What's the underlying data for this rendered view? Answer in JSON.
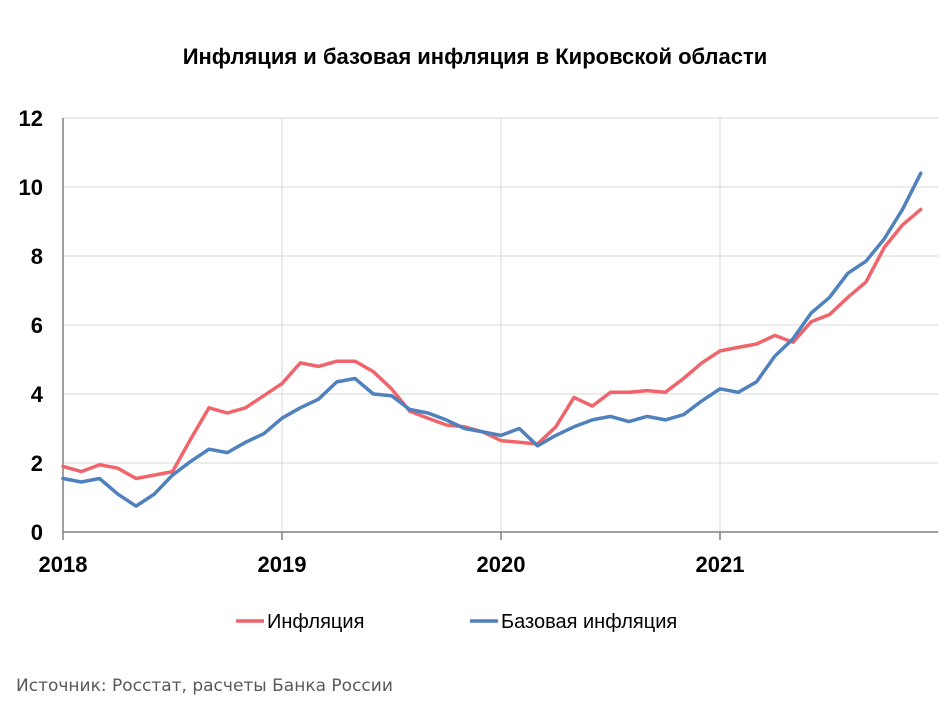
{
  "chart_data": {
    "type": "line",
    "title": "Инфляция и базовая инфляция в Кировской области",
    "xlabel": "",
    "ylabel": "",
    "ylim": [
      0,
      12
    ],
    "yticks": [
      "0",
      "2",
      "4",
      "6",
      "8",
      "10",
      "12"
    ],
    "xticks": [
      "2018",
      "2019",
      "2020",
      "2021"
    ],
    "grid": true,
    "legend_position": "bottom",
    "colors": {
      "inflation": "#f0646b",
      "core": "#4f81bd",
      "grid": "#d9d9d9",
      "axis": "#808080"
    },
    "x": [
      "2018-01",
      "2018-02",
      "2018-03",
      "2018-04",
      "2018-05",
      "2018-06",
      "2018-07",
      "2018-08",
      "2018-09",
      "2018-10",
      "2018-11",
      "2018-12",
      "2019-01",
      "2019-02",
      "2019-03",
      "2019-04",
      "2019-05",
      "2019-06",
      "2019-07",
      "2019-08",
      "2019-09",
      "2019-10",
      "2019-11",
      "2019-12",
      "2020-01",
      "2020-02",
      "2020-03",
      "2020-04",
      "2020-05",
      "2020-06",
      "2020-07",
      "2020-08",
      "2020-09",
      "2020-10",
      "2020-11",
      "2020-12",
      "2021-01",
      "2021-02",
      "2021-03",
      "2021-04",
      "2021-05",
      "2021-06",
      "2021-07",
      "2021-08",
      "2021-09",
      "2021-10",
      "2021-11",
      "2021-12"
    ],
    "series": [
      {
        "name": "Инфляция",
        "values": [
          1.9,
          1.75,
          1.95,
          1.85,
          1.55,
          1.65,
          1.75,
          2.7,
          3.6,
          3.45,
          3.6,
          3.95,
          4.3,
          4.9,
          4.8,
          4.95,
          4.95,
          4.65,
          4.15,
          3.5,
          3.3,
          3.1,
          3.05,
          2.9,
          2.65,
          2.6,
          2.55,
          3.05,
          3.9,
          3.65,
          4.05,
          4.05,
          4.1,
          4.05,
          4.45,
          4.9,
          5.25,
          5.35,
          5.45,
          5.7,
          5.5,
          6.1,
          6.3,
          6.8,
          7.25,
          8.25,
          8.9,
          9.35
        ]
      },
      {
        "name": "Базовая инфляция",
        "values": [
          1.55,
          1.45,
          1.55,
          1.1,
          0.75,
          1.1,
          1.65,
          2.05,
          2.4,
          2.3,
          2.6,
          2.85,
          3.3,
          3.6,
          3.85,
          4.35,
          4.45,
          4.0,
          3.95,
          3.55,
          3.45,
          3.25,
          3.0,
          2.9,
          2.8,
          3.0,
          2.5,
          2.8,
          3.05,
          3.25,
          3.35,
          3.2,
          3.35,
          3.25,
          3.4,
          3.8,
          4.15,
          4.05,
          4.35,
          5.1,
          5.6,
          6.35,
          6.8,
          7.5,
          7.85,
          8.5,
          9.35,
          10.4
        ]
      }
    ]
  },
  "source_text": "Источник: Росстат, расчеты Банка России"
}
